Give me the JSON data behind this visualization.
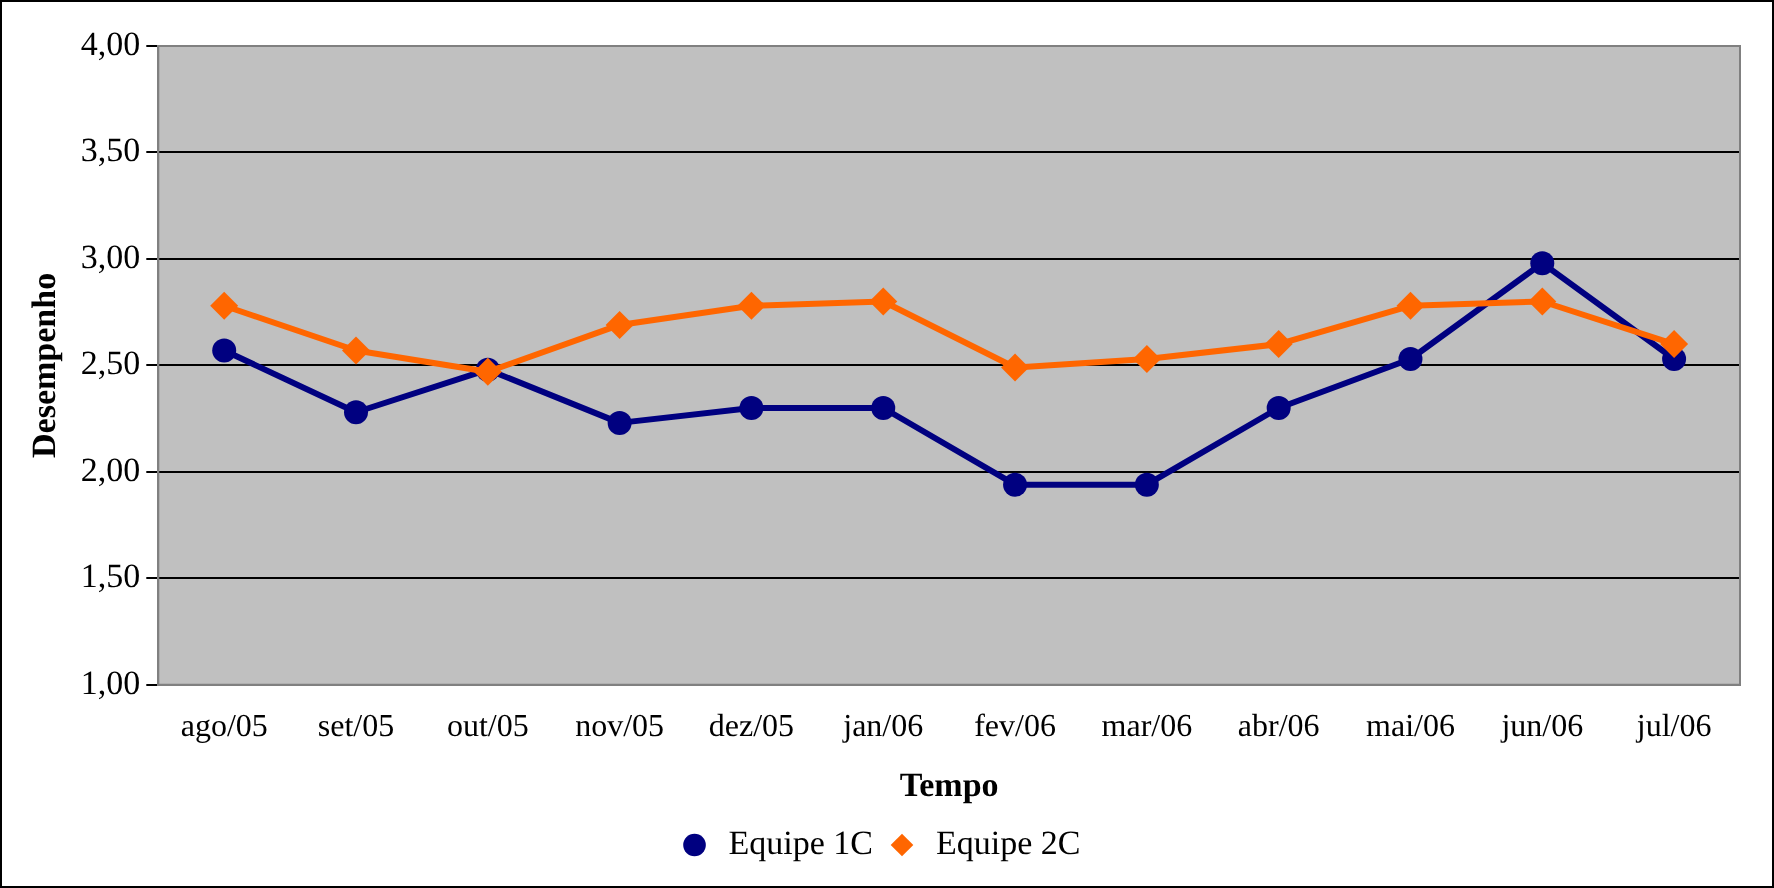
{
  "chart_data": {
    "type": "line",
    "xlabel": "Tempo",
    "ylabel": "Desempenho",
    "categories": [
      "ago/05",
      "set/05",
      "out/05",
      "nov/05",
      "dez/05",
      "jan/06",
      "fev/06",
      "mar/06",
      "abr/06",
      "mai/06",
      "jun/06",
      "jul/06"
    ],
    "series": [
      {
        "name": "Equipe 1C",
        "color": "#000080",
        "marker": "circle",
        "values": [
          2.57,
          2.28,
          2.48,
          2.23,
          2.3,
          2.3,
          1.94,
          1.94,
          2.3,
          2.53,
          2.98,
          2.53
        ]
      },
      {
        "name": "Equipe 2C",
        "color": "#ff6600",
        "marker": "diamond",
        "values": [
          2.78,
          2.57,
          2.47,
          2.69,
          2.78,
          2.8,
          2.49,
          2.53,
          2.6,
          2.78,
          2.8,
          2.6
        ]
      }
    ],
    "ylim": [
      1,
      4
    ],
    "yticks": [
      {
        "value": 1,
        "label": "1,00"
      },
      {
        "value": 1.5,
        "label": "1,50"
      },
      {
        "value": 2,
        "label": "2,00"
      },
      {
        "value": 2.5,
        "label": "2,50"
      },
      {
        "value": 3,
        "label": "3,00"
      },
      {
        "value": 3.5,
        "label": "3,50"
      },
      {
        "value": 4,
        "label": "4,00"
      }
    ],
    "grid": "y",
    "legend": "bottom"
  }
}
